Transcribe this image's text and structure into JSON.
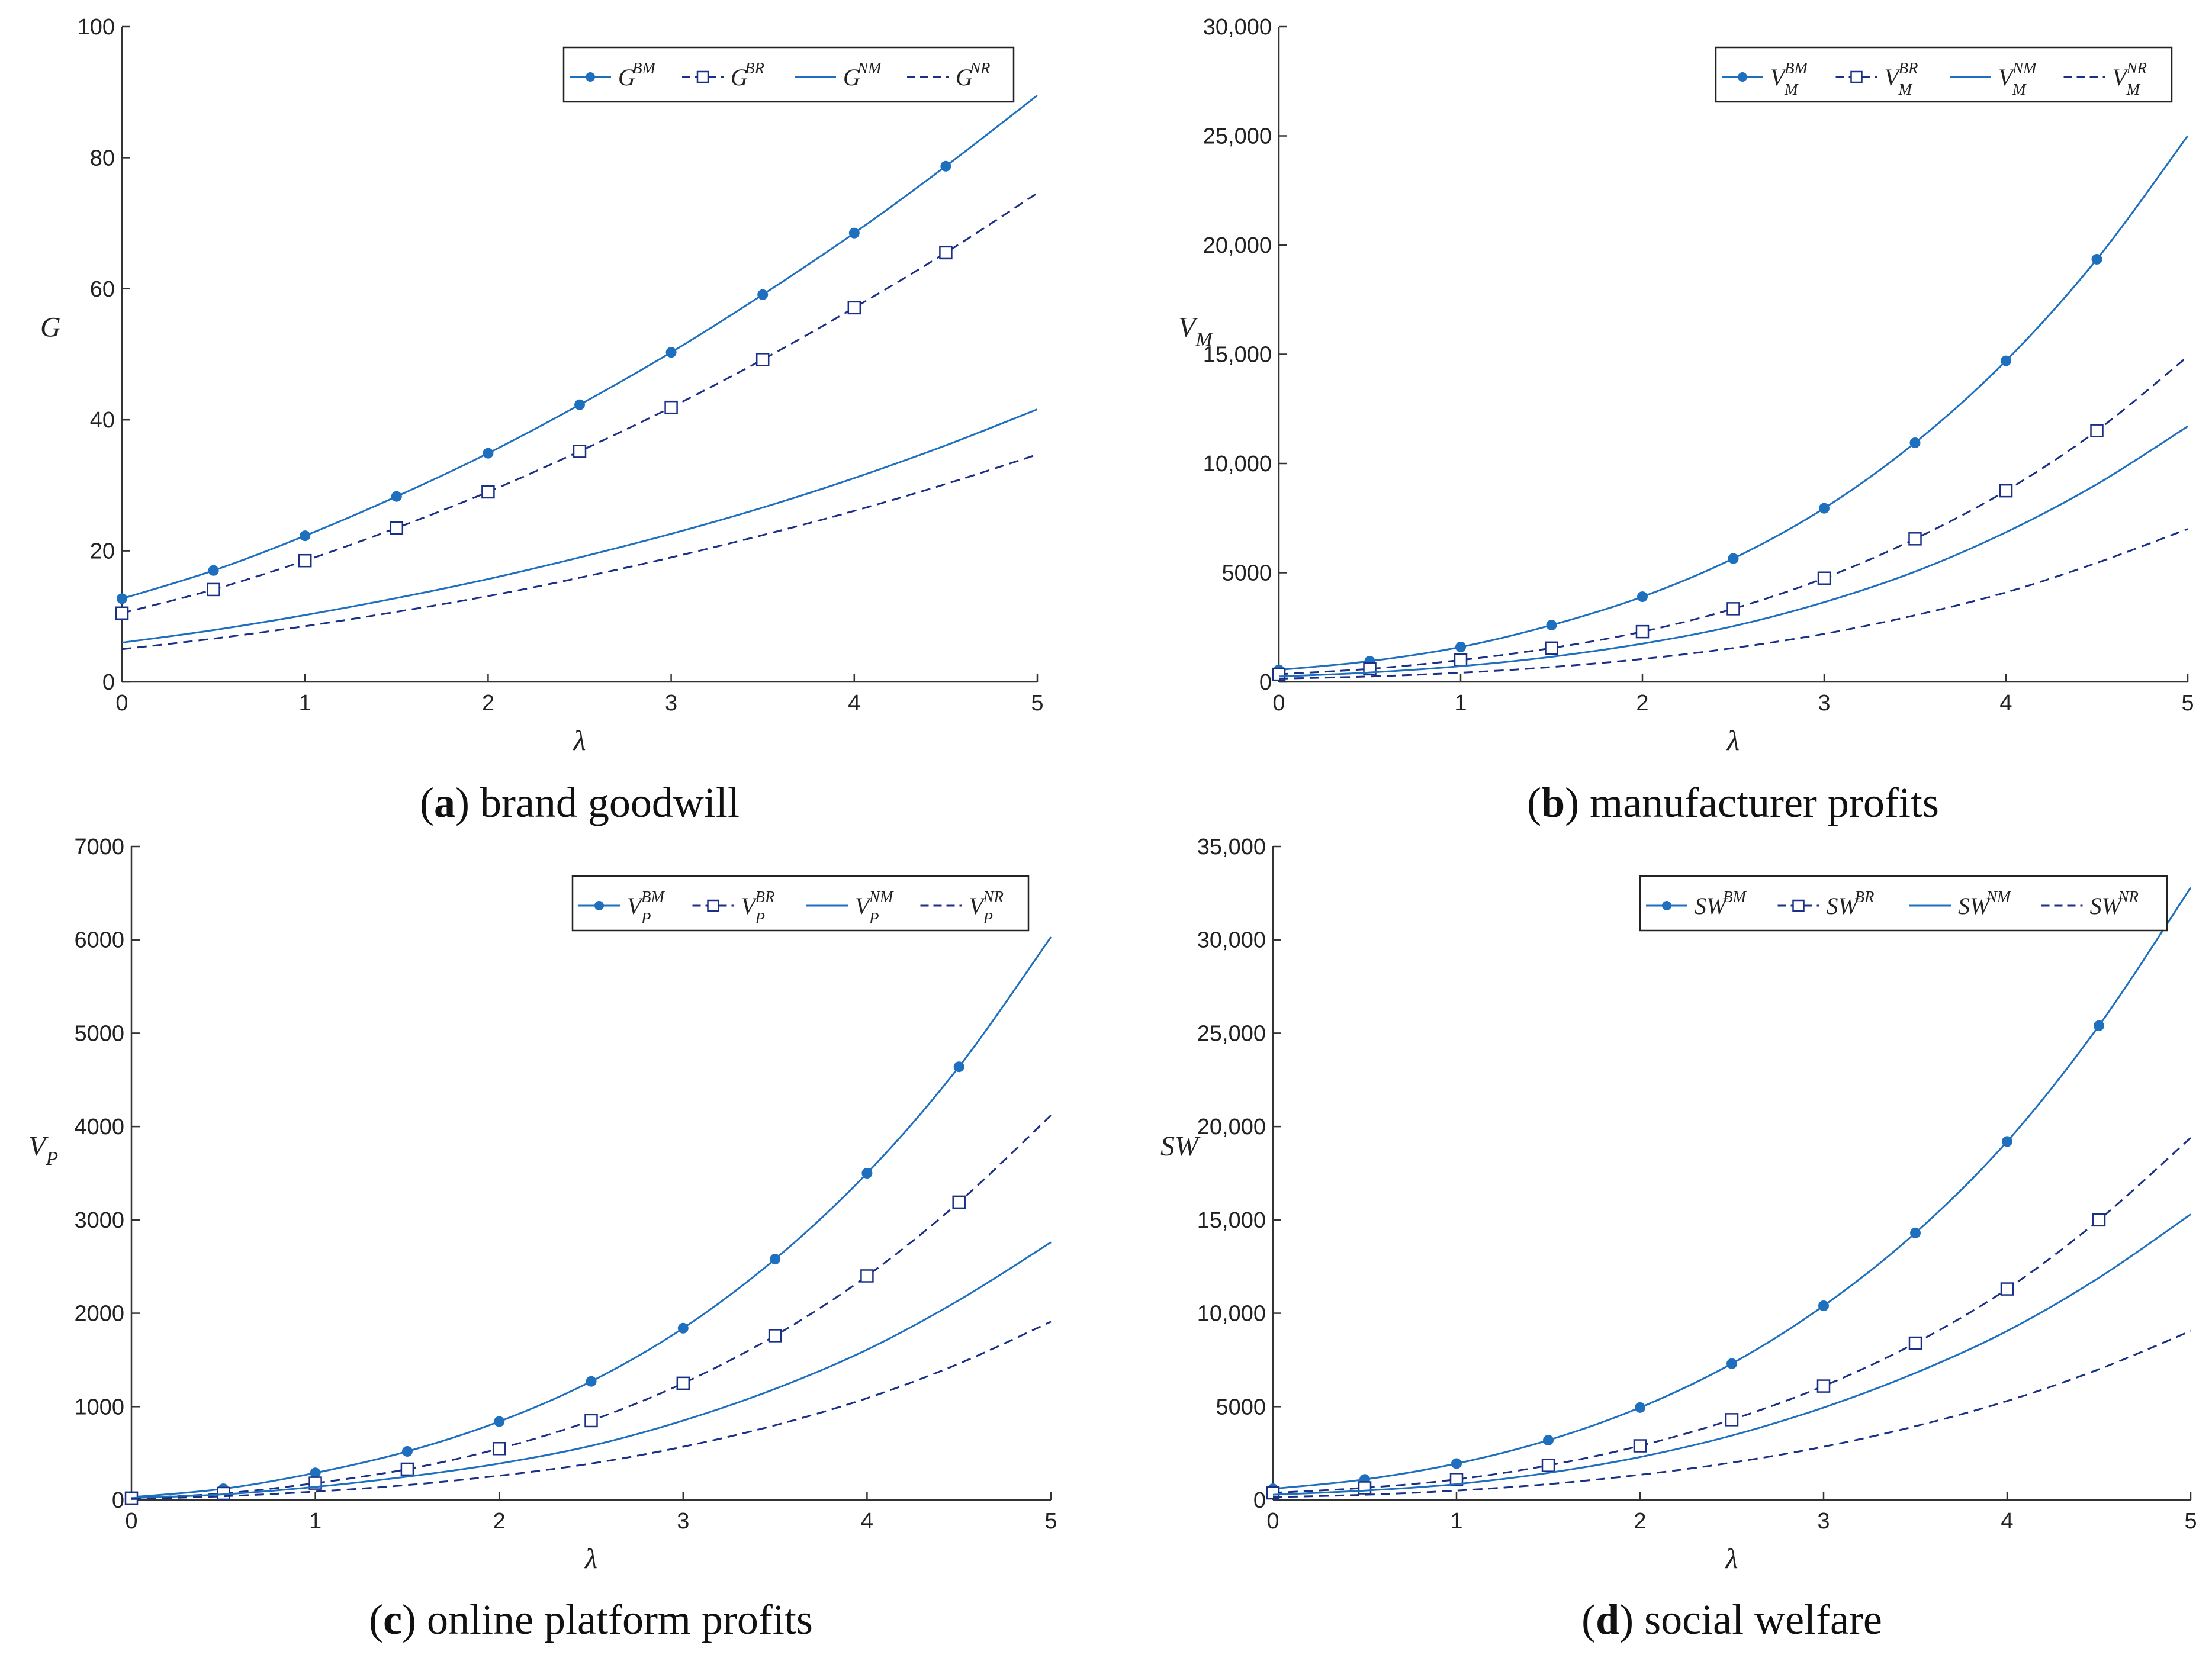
{
  "colors": {
    "solid": "#1f6fbf",
    "dashed": "#1a2f86",
    "axis": "#333333"
  },
  "chart_data": [
    {
      "type": "line",
      "caption": {
        "letter": "a",
        "text": "brand goodwill"
      },
      "xlabel": "λ",
      "ylabel": {
        "base": "G",
        "sub": ""
      },
      "xlim": [
        0,
        5
      ],
      "ylim": [
        0,
        100
      ],
      "yticks": [
        0,
        20,
        40,
        60,
        80,
        100
      ],
      "ytick_labels": [
        "0",
        "20",
        "40",
        "60",
        "80",
        "100"
      ],
      "xticks": [
        0,
        1,
        2,
        3,
        4,
        5
      ],
      "legend_position": "top-right",
      "x": [
        0,
        0.5,
        1,
        1.5,
        2,
        2.5,
        3,
        3.5,
        4,
        4.5,
        5
      ],
      "series": [
        {
          "name": "G^BM",
          "legend": {
            "base": "G",
            "sup": "BM",
            "sub": ""
          },
          "style": "solid-dot",
          "values": [
            12.7,
            17.0,
            22.3,
            28.3,
            34.9,
            42.3,
            50.3,
            59.1,
            68.5,
            78.7,
            89.5
          ]
        },
        {
          "name": "G^BR",
          "legend": {
            "base": "G",
            "sup": "BR",
            "sub": ""
          },
          "style": "dashed-square",
          "values": [
            10.5,
            14.1,
            18.5,
            23.5,
            29.0,
            35.2,
            41.9,
            49.2,
            57.1,
            65.5,
            74.6
          ]
        },
        {
          "name": "G^NM",
          "legend": {
            "base": "G",
            "sup": "NM",
            "sub": ""
          },
          "style": "solid",
          "values": [
            6.0,
            7.9,
            10.2,
            12.8,
            15.7,
            19.0,
            22.6,
            26.6,
            31.1,
            36.1,
            41.6
          ]
        },
        {
          "name": "G^NR",
          "legend": {
            "base": "G",
            "sup": "NR",
            "sub": ""
          },
          "style": "dashed",
          "values": [
            5.0,
            6.6,
            8.5,
            10.7,
            13.1,
            15.9,
            19.0,
            22.4,
            26.1,
            30.2,
            34.7
          ]
        }
      ]
    },
    {
      "type": "line",
      "caption": {
        "letter": "b",
        "text": "manufacturer profits"
      },
      "xlabel": "λ",
      "ylabel": {
        "base": "V",
        "sub": "M"
      },
      "xlim": [
        0,
        5
      ],
      "ylim": [
        0,
        30000
      ],
      "yticks": [
        0,
        5000,
        10000,
        15000,
        20000,
        25000,
        30000
      ],
      "ytick_labels": [
        "0",
        "5000",
        "10,000",
        "15,000",
        "20,000",
        "25,000",
        "30,000"
      ],
      "xticks": [
        0,
        1,
        2,
        3,
        4,
        5
      ],
      "legend_position": "top-right",
      "x": [
        0,
        0.5,
        1,
        1.5,
        2,
        2.5,
        3,
        3.5,
        4,
        4.5,
        5
      ],
      "series": [
        {
          "name": "V_M^BM",
          "legend": {
            "base": "V",
            "sup": "BM",
            "sub": "M"
          },
          "style": "solid-dot",
          "values": [
            550,
            950,
            1600,
            2600,
            3900,
            5650,
            7950,
            10950,
            14700,
            19350,
            25000
          ]
        },
        {
          "name": "V_M^BR",
          "legend": {
            "base": "V",
            "sup": "BR",
            "sub": "M"
          },
          "style": "dashed-square",
          "values": [
            350,
            600,
            1000,
            1550,
            2300,
            3350,
            4750,
            6550,
            8750,
            11500,
            14900
          ]
        },
        {
          "name": "V_M^NM",
          "legend": {
            "base": "V",
            "sup": "NM",
            "sub": "M"
          },
          "style": "solid",
          "values": [
            250,
            430,
            720,
            1150,
            1750,
            2550,
            3650,
            5050,
            6850,
            9050,
            11700
          ]
        },
        {
          "name": "V_M^NR",
          "legend": {
            "base": "V",
            "sup": "NR",
            "sub": "M"
          },
          "style": "dashed",
          "values": [
            150,
            250,
            420,
            680,
            1050,
            1550,
            2200,
            3050,
            4100,
            5450,
            7000
          ]
        }
      ]
    },
    {
      "type": "line",
      "caption": {
        "letter": "c",
        "text": "online platform profits"
      },
      "xlabel": "λ",
      "ylabel": {
        "base": "V",
        "sub": "P"
      },
      "xlim": [
        0,
        5
      ],
      "ylim": [
        0,
        7000
      ],
      "yticks": [
        0,
        1000,
        2000,
        3000,
        4000,
        5000,
        6000,
        7000
      ],
      "ytick_labels": [
        "0",
        "1000",
        "2000",
        "3000",
        "4000",
        "5000",
        "6000",
        "7000"
      ],
      "xticks": [
        0,
        1,
        2,
        3,
        4,
        5
      ],
      "legend_position": "top-right",
      "x": [
        0,
        0.5,
        1,
        1.5,
        2,
        2.5,
        3,
        3.5,
        4,
        4.5,
        5
      ],
      "series": [
        {
          "name": "V_P^BM",
          "legend": {
            "base": "V",
            "sup": "BM",
            "sub": "P"
          },
          "style": "solid-dot",
          "values": [
            30,
            120,
            290,
            520,
            840,
            1270,
            1840,
            2580,
            3500,
            4640,
            6030
          ]
        },
        {
          "name": "V_P^BR",
          "legend": {
            "base": "V",
            "sup": "BR",
            "sub": "P"
          },
          "style": "dashed-square",
          "values": [
            20,
            70,
            180,
            330,
            550,
            850,
            1250,
            1760,
            2400,
            3190,
            4120
          ]
        },
        {
          "name": "V_P^NM",
          "legend": {
            "base": "V",
            "sup": "NM",
            "sub": "P"
          },
          "style": "solid",
          "values": [
            20,
            60,
            140,
            250,
            390,
            580,
            850,
            1190,
            1610,
            2140,
            2760
          ]
        },
        {
          "name": "V_P^NR",
          "legend": {
            "base": "V",
            "sup": "NR",
            "sub": "P"
          },
          "style": "dashed",
          "values": [
            10,
            40,
            90,
            160,
            260,
            390,
            570,
            800,
            1090,
            1460,
            1910
          ]
        }
      ]
    },
    {
      "type": "line",
      "caption": {
        "letter": "d",
        "text": "social welfare"
      },
      "xlabel": "λ",
      "ylabel": {
        "base": "SW",
        "sub": ""
      },
      "xlim": [
        0,
        5
      ],
      "ylim": [
        0,
        35000
      ],
      "yticks": [
        0,
        5000,
        10000,
        15000,
        20000,
        25000,
        30000,
        35000
      ],
      "ytick_labels": [
        "0",
        "5000",
        "10,000",
        "15,000",
        "20,000",
        "25,000",
        "30,000",
        "35,000"
      ],
      "xticks": [
        0,
        1,
        2,
        3,
        4,
        5
      ],
      "legend_position": "top-right",
      "x": [
        0,
        0.5,
        1,
        1.5,
        2,
        2.5,
        3,
        3.5,
        4,
        4.5,
        5
      ],
      "series": [
        {
          "name": "SW^BM",
          "legend": {
            "base": "SW",
            "sup": "BM",
            "sub": ""
          },
          "style": "solid-dot",
          "values": [
            600,
            1100,
            1950,
            3200,
            4950,
            7300,
            10400,
            14300,
            19200,
            25400,
            32800
          ]
        },
        {
          "name": "SW^BR",
          "legend": {
            "base": "SW",
            "sup": "BR",
            "sub": ""
          },
          "style": "dashed-square",
          "values": [
            380,
            650,
            1100,
            1850,
            2900,
            4300,
            6100,
            8400,
            11300,
            15000,
            19400
          ]
        },
        {
          "name": "SW^NM",
          "legend": {
            "base": "SW",
            "sup": "NM",
            "sub": ""
          },
          "style": "solid",
          "values": [
            280,
            500,
            850,
            1450,
            2300,
            3450,
            4950,
            6800,
            9050,
            11900,
            15300
          ]
        },
        {
          "name": "SW^NR",
          "legend": {
            "base": "SW",
            "sup": "NR",
            "sub": ""
          },
          "style": "dashed",
          "values": [
            150,
            280,
            500,
            850,
            1350,
            2000,
            2850,
            3950,
            5300,
            7000,
            9050
          ]
        }
      ]
    }
  ]
}
